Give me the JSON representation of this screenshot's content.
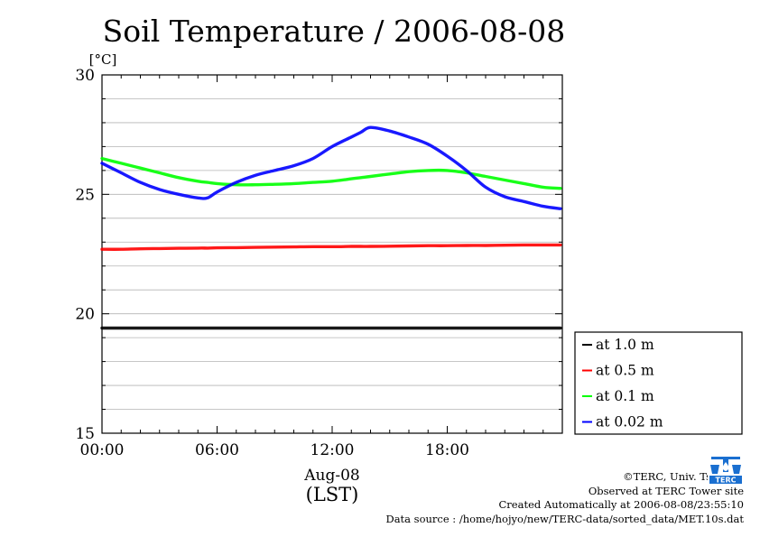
{
  "chart_data": {
    "type": "line",
    "title": "Soil Temperature / 2006-08-08",
    "ylabel": "[°C]",
    "xlabel_date": "Aug-08",
    "xlabel_unit": "(LST)",
    "ylim": [
      15,
      30
    ],
    "xlim_hours": [
      0,
      24
    ],
    "y_ticks": [
      "15",
      "20",
      "25",
      "30"
    ],
    "x_ticks": [
      "00:00",
      "06:00",
      "12:00",
      "18:00"
    ],
    "grid": true,
    "legend_position": "right",
    "x_hours": [
      0,
      1,
      2,
      3,
      4,
      5,
      5.5,
      6,
      7,
      8,
      9,
      10,
      11,
      12,
      13,
      13.5,
      14,
      15,
      16,
      17,
      18,
      19,
      20,
      21,
      22,
      23,
      23.9
    ],
    "series": [
      {
        "name": "at 1.0 m",
        "color": "#000000",
        "values": [
          19.4,
          19.4,
          19.4,
          19.4,
          19.4,
          19.4,
          19.4,
          19.4,
          19.4,
          19.4,
          19.4,
          19.4,
          19.4,
          19.4,
          19.4,
          19.4,
          19.4,
          19.4,
          19.4,
          19.4,
          19.4,
          19.4,
          19.4,
          19.4,
          19.4,
          19.4,
          19.4
        ]
      },
      {
        "name": "at 0.5 m",
        "color": "#ff0000",
        "values": [
          22.7,
          22.7,
          22.72,
          22.73,
          22.74,
          22.75,
          22.75,
          22.76,
          22.77,
          22.78,
          22.79,
          22.8,
          22.81,
          22.81,
          22.82,
          22.82,
          22.82,
          22.83,
          22.84,
          22.85,
          22.85,
          22.86,
          22.86,
          22.87,
          22.88,
          22.88,
          22.88
        ]
      },
      {
        "name": "at 0.1 m",
        "color": "#00ff00",
        "values": [
          26.5,
          26.3,
          26.1,
          25.9,
          25.7,
          25.55,
          25.5,
          25.45,
          25.4,
          25.4,
          25.42,
          25.45,
          25.5,
          25.55,
          25.65,
          25.7,
          25.75,
          25.85,
          25.95,
          26.0,
          26.0,
          25.9,
          25.75,
          25.6,
          25.45,
          25.3,
          25.25
        ]
      },
      {
        "name": "at 0.02 m",
        "color": "#0000ff",
        "values": [
          26.3,
          25.9,
          25.5,
          25.2,
          25.0,
          24.85,
          24.85,
          25.1,
          25.5,
          25.8,
          26.0,
          26.2,
          26.5,
          27.0,
          27.4,
          27.6,
          27.8,
          27.65,
          27.4,
          27.1,
          26.6,
          26.0,
          25.3,
          24.9,
          24.7,
          24.5,
          24.4
        ]
      }
    ]
  },
  "credits": {
    "line1": "©TERC, Univ. Tsukuba",
    "line2": "Observed at TERC Tower site",
    "line3": "Created Automatically at 2006-08-08/23:55:10",
    "line4": "Data source : /home/hojyo/new/TERC-data/sorted_data/MET.10s.dat"
  },
  "logo": {
    "text": "TERC",
    "color": "#1a6fd0",
    "icon": "terc-logo-icon"
  }
}
